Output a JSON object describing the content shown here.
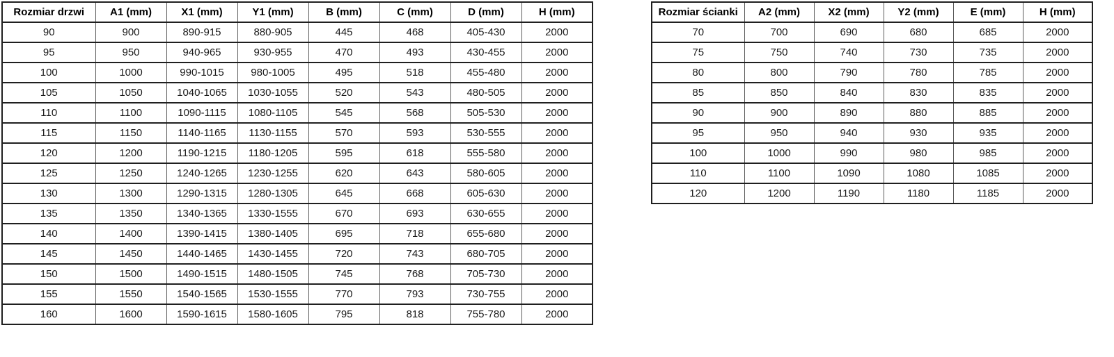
{
  "tables": {
    "door": {
      "headers": [
        "Rozmiar drzwi",
        "A1 (mm)",
        "X1 (mm)",
        "Y1 (mm)",
        "B (mm)",
        "C (mm)",
        "D (mm)",
        "H (mm)"
      ],
      "rows": [
        [
          "90",
          "900",
          "890-915",
          "880-905",
          "445",
          "468",
          "405-430",
          "2000"
        ],
        [
          "95",
          "950",
          "940-965",
          "930-955",
          "470",
          "493",
          "430-455",
          "2000"
        ],
        [
          "100",
          "1000",
          "990-1015",
          "980-1005",
          "495",
          "518",
          "455-480",
          "2000"
        ],
        [
          "105",
          "1050",
          "1040-1065",
          "1030-1055",
          "520",
          "543",
          "480-505",
          "2000"
        ],
        [
          "110",
          "1100",
          "1090-1115",
          "1080-1105",
          "545",
          "568",
          "505-530",
          "2000"
        ],
        [
          "115",
          "1150",
          "1140-1165",
          "1130-1155",
          "570",
          "593",
          "530-555",
          "2000"
        ],
        [
          "120",
          "1200",
          "1190-1215",
          "1180-1205",
          "595",
          "618",
          "555-580",
          "2000"
        ],
        [
          "125",
          "1250",
          "1240-1265",
          "1230-1255",
          "620",
          "643",
          "580-605",
          "2000"
        ],
        [
          "130",
          "1300",
          "1290-1315",
          "1280-1305",
          "645",
          "668",
          "605-630",
          "2000"
        ],
        [
          "135",
          "1350",
          "1340-1365",
          "1330-1555",
          "670",
          "693",
          "630-655",
          "2000"
        ],
        [
          "140",
          "1400",
          "1390-1415",
          "1380-1405",
          "695",
          "718",
          "655-680",
          "2000"
        ],
        [
          "145",
          "1450",
          "1440-1465",
          "1430-1455",
          "720",
          "743",
          "680-705",
          "2000"
        ],
        [
          "150",
          "1500",
          "1490-1515",
          "1480-1505",
          "745",
          "768",
          "705-730",
          "2000"
        ],
        [
          "155",
          "1550",
          "1540-1565",
          "1530-1555",
          "770",
          "793",
          "730-755",
          "2000"
        ],
        [
          "160",
          "1600",
          "1590-1615",
          "1580-1605",
          "795",
          "818",
          "755-780",
          "2000"
        ]
      ]
    },
    "wall": {
      "headers": [
        "Rozmiar ścianki",
        "A2 (mm)",
        "X2 (mm)",
        "Y2 (mm)",
        "E (mm)",
        "H (mm)"
      ],
      "rows": [
        [
          "70",
          "700",
          "690",
          "680",
          "685",
          "2000"
        ],
        [
          "75",
          "750",
          "740",
          "730",
          "735",
          "2000"
        ],
        [
          "80",
          "800",
          "790",
          "780",
          "785",
          "2000"
        ],
        [
          "85",
          "850",
          "840",
          "830",
          "835",
          "2000"
        ],
        [
          "90",
          "900",
          "890",
          "880",
          "885",
          "2000"
        ],
        [
          "95",
          "950",
          "940",
          "930",
          "935",
          "2000"
        ],
        [
          "100",
          "1000",
          "990",
          "980",
          "985",
          "2000"
        ],
        [
          "110",
          "1100",
          "1090",
          "1080",
          "1085",
          "2000"
        ],
        [
          "120",
          "1200",
          "1190",
          "1180",
          "1185",
          "2000"
        ]
      ]
    }
  }
}
